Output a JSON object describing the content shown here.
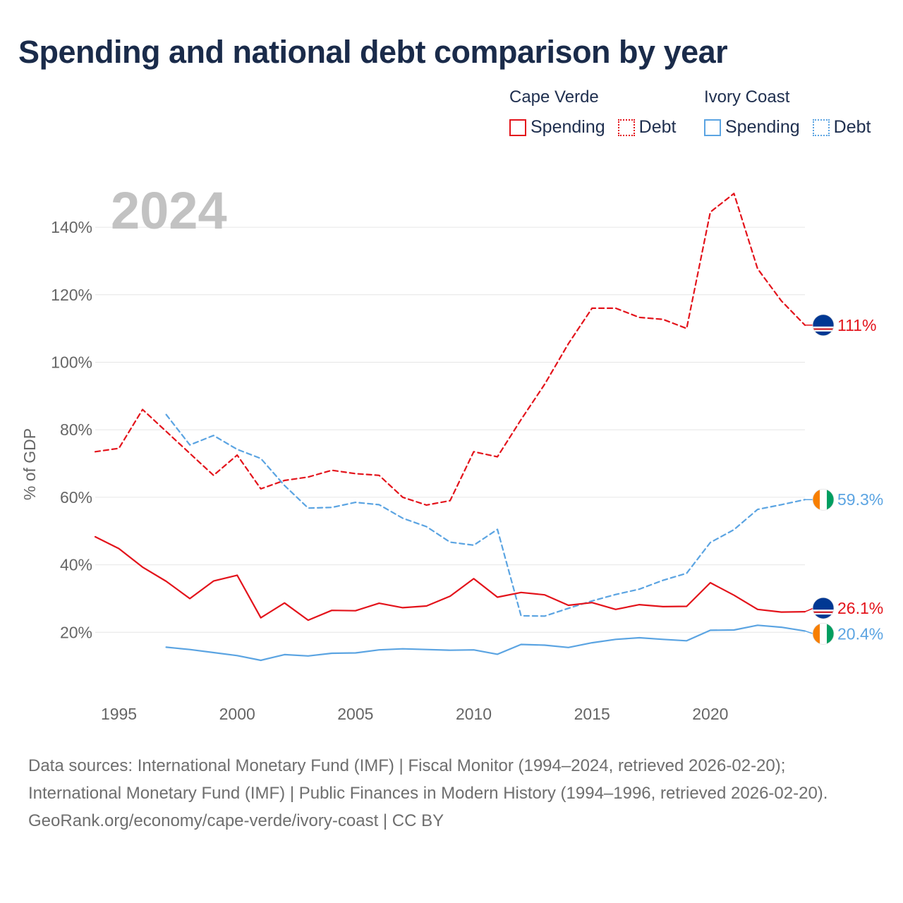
{
  "title": "Spending and national debt comparison by year",
  "legend": {
    "groups": [
      {
        "country": "Cape Verde",
        "color": "#e3131b",
        "items": [
          {
            "label": "Spending",
            "style": "solid"
          },
          {
            "label": "Debt",
            "style": "dotted"
          }
        ]
      },
      {
        "country": "Ivory Coast",
        "color": "#5ba4e2",
        "items": [
          {
            "label": "Spending",
            "style": "solid"
          },
          {
            "label": "Debt",
            "style": "dotted"
          }
        ]
      }
    ]
  },
  "chart_data": {
    "type": "line",
    "year_label": "2024",
    "ylabel": "% of GDP",
    "xlim": [
      1994,
      2024
    ],
    "ylim": [
      0,
      150
    ],
    "x_ticks": [
      1995,
      2000,
      2005,
      2010,
      2015,
      2020
    ],
    "x_tick_labels": [
      "1995",
      "2000",
      "2005",
      "2010",
      "2015",
      "2020"
    ],
    "y_ticks": [
      20,
      40,
      60,
      80,
      100,
      120,
      140
    ],
    "y_tick_labels": [
      "20%",
      "40%",
      "60%",
      "80%",
      "100%",
      "120%",
      "140%"
    ],
    "series": [
      {
        "name": "Cape Verde Debt",
        "country": "Cape Verde",
        "metric": "Debt",
        "color": "#e3131b",
        "dash": true,
        "x": [
          1994,
          1995,
          1996,
          1997,
          1998,
          1999,
          2000,
          2001,
          2002,
          2003,
          2004,
          2005,
          2006,
          2007,
          2008,
          2009,
          2010,
          2011,
          2012,
          2013,
          2014,
          2015,
          2016,
          2017,
          2018,
          2019,
          2020,
          2021,
          2022,
          2023,
          2024
        ],
        "values": [
          73.5,
          74.5,
          86,
          79.5,
          73,
          66.5,
          72.5,
          62.5,
          65,
          66,
          68,
          67,
          66.5,
          60,
          57.7,
          59,
          73.5,
          72,
          83,
          93.5,
          105.5,
          116,
          116,
          113.3,
          112.7,
          110,
          144.5,
          150,
          127.7,
          118.2,
          111
        ],
        "end_label": "111%",
        "flag": "cape-verde"
      },
      {
        "name": "Ivory Coast Debt",
        "country": "Ivory Coast",
        "metric": "Debt",
        "color": "#5ba4e2",
        "dash": true,
        "x": [
          1997,
          1998,
          1999,
          2000,
          2001,
          2002,
          2003,
          2004,
          2005,
          2006,
          2007,
          2008,
          2009,
          2010,
          2011,
          2012,
          2013,
          2014,
          2015,
          2016,
          2017,
          2018,
          2019,
          2020,
          2021,
          2022,
          2023,
          2024
        ],
        "values": [
          84.5,
          75.5,
          78.3,
          74.2,
          71.5,
          63.5,
          56.8,
          57,
          58.5,
          57.8,
          53.8,
          51.3,
          46.7,
          45.8,
          50.5,
          24.9,
          24.8,
          27.1,
          29.3,
          31.2,
          32.8,
          35.4,
          37.5,
          46.6,
          50.4,
          56.4,
          57.8,
          59.3
        ],
        "end_label": "59.3%",
        "flag": "ivory-coast"
      },
      {
        "name": "Cape Verde Spending",
        "country": "Cape Verde",
        "metric": "Spending",
        "color": "#e3131b",
        "dash": false,
        "x": [
          1994,
          1995,
          1996,
          1997,
          1998,
          1999,
          2000,
          2001,
          2002,
          2003,
          2004,
          2005,
          2006,
          2007,
          2008,
          2009,
          2010,
          2011,
          2012,
          2013,
          2014,
          2015,
          2016,
          2017,
          2018,
          2019,
          2020,
          2021,
          2022,
          2023,
          2024
        ],
        "values": [
          48.3,
          44.8,
          39.3,
          35.1,
          30,
          35.2,
          36.9,
          24.3,
          28.7,
          23.6,
          26.5,
          26.4,
          28.6,
          27.3,
          27.8,
          30.7,
          35.9,
          30.4,
          31.8,
          31.1,
          28,
          28.8,
          26.8,
          28.2,
          27.6,
          27.7,
          34.7,
          31,
          26.8,
          26,
          26.1
        ],
        "end_label": "26.1%",
        "flag": "cape-verde"
      },
      {
        "name": "Ivory Coast Spending",
        "country": "Ivory Coast",
        "metric": "Spending",
        "color": "#5ba4e2",
        "dash": false,
        "x": [
          1997,
          1998,
          1999,
          2000,
          2001,
          2002,
          2003,
          2004,
          2005,
          2006,
          2007,
          2008,
          2009,
          2010,
          2011,
          2012,
          2013,
          2014,
          2015,
          2016,
          2017,
          2018,
          2019,
          2020,
          2021,
          2022,
          2023,
          2024
        ],
        "values": [
          15.6,
          14.9,
          14,
          13.1,
          11.7,
          13.4,
          13,
          13.8,
          13.9,
          14.8,
          15.1,
          14.9,
          14.7,
          14.8,
          13.5,
          16.4,
          16.2,
          15.5,
          16.9,
          17.9,
          18.4,
          17.9,
          17.5,
          20.6,
          20.7,
          22.1,
          21.5,
          20.4
        ],
        "end_label": "20.4%",
        "flag": "ivory-coast"
      }
    ]
  },
  "footer": {
    "sources": "Data sources: International Monetary Fund (IMF) | Fiscal Monitor (1994–2024, retrieved 2026-02-20); International Monetary Fund (IMF) | Public Finances in Modern History (1994–1996, retrieved 2026-02-20).",
    "attribution": "GeoRank.org/economy/cape-verde/ivory-coast | CC BY"
  }
}
